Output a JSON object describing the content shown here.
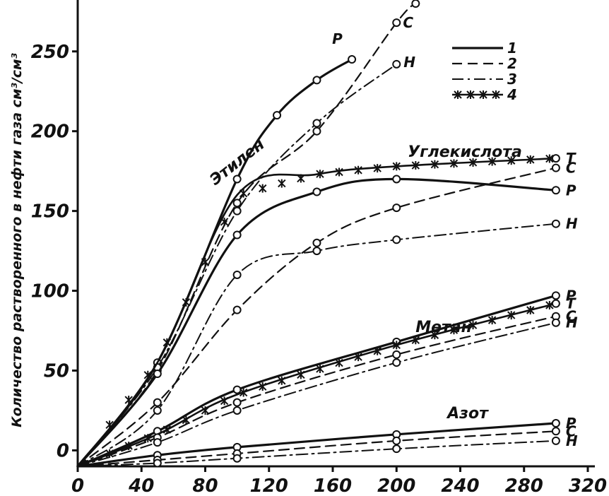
{
  "chart_data": {
    "type": "line",
    "ylabel": "Количество растворенного в нефти газа см³/см³",
    "xlim": [
      0,
      320
    ],
    "ylim": [
      -10,
      280
    ],
    "x_ticks": [
      "0",
      "40",
      "80",
      "120",
      "160",
      "200",
      "240",
      "280",
      "320"
    ],
    "y_ticks": [
      "0",
      "50",
      "100",
      "150",
      "200",
      "250"
    ],
    "legend": [
      {
        "label": "1",
        "style": "solid"
      },
      {
        "label": "2",
        "style": "dashed"
      },
      {
        "label": "3",
        "style": "dashdot"
      },
      {
        "label": "4",
        "style": "solid-star"
      }
    ],
    "groups": [
      {
        "name": "Этилен",
        "series": [
          {
            "end_label": "Р",
            "style": "solid",
            "x": [
              0,
              50,
              100,
              125,
              150,
              172
            ],
            "y": [
              -10,
              55,
              170,
              210,
              232,
              245
            ]
          },
          {
            "end_label": "С",
            "style": "dashed",
            "x": [
              0,
              50,
              100,
              150,
              200,
              212
            ],
            "y": [
              -10,
              50,
              155,
              200,
              268,
              280
            ]
          },
          {
            "end_label": "Н",
            "style": "dashdot",
            "x": [
              0,
              50,
              100,
              150,
              200
            ],
            "y": [
              -10,
              52,
              150,
              205,
              242
            ]
          }
        ]
      },
      {
        "name": "Углекислота",
        "series": [
          {
            "end_label": "Т",
            "style": "solid-star",
            "x": [
              0,
              50,
              100,
              150,
              200,
              300
            ],
            "y": [
              -10,
              55,
              160,
              173,
              178,
              183
            ]
          },
          {
            "end_label": "С",
            "style": "dashed",
            "x": [
              0,
              50,
              100,
              150,
              200,
              300
            ],
            "y": [
              -10,
              30,
              88,
              130,
              152,
              177
            ]
          },
          {
            "end_label": "Р",
            "style": "solid",
            "x": [
              0,
              50,
              100,
              150,
              200,
              300
            ],
            "y": [
              -10,
              48,
              135,
              162,
              170,
              163
            ]
          },
          {
            "end_label": "Н",
            "style": "dashdot",
            "x": [
              0,
              50,
              100,
              150,
              200,
              300
            ],
            "y": [
              -10,
              25,
              110,
              125,
              132,
              142
            ]
          }
        ]
      },
      {
        "name": "Метан",
        "series": [
          {
            "end_label": "Р",
            "style": "solid",
            "x": [
              0,
              50,
              100,
              200,
              300
            ],
            "y": [
              -10,
              12,
              38,
              68,
              97
            ]
          },
          {
            "end_label": "Т",
            "style": "solid-star",
            "x": [
              0,
              50,
              100,
              200,
              300
            ],
            "y": [
              -10,
              10,
              35,
              66,
              92
            ]
          },
          {
            "end_label": "С",
            "style": "dashed",
            "x": [
              0,
              50,
              100,
              200,
              300
            ],
            "y": [
              -10,
              8,
              30,
              60,
              84
            ]
          },
          {
            "end_label": "Н",
            "style": "dashdot",
            "x": [
              0,
              50,
              100,
              200,
              300
            ],
            "y": [
              -10,
              5,
              25,
              55,
              80
            ]
          }
        ]
      },
      {
        "name": "Азот",
        "series": [
          {
            "end_label": "Р",
            "style": "solid",
            "x": [
              0,
              50,
              100,
              200,
              300
            ],
            "y": [
              -10,
              -3,
              2,
              10,
              17
            ]
          },
          {
            "end_label": "С",
            "style": "dashed",
            "x": [
              0,
              50,
              100,
              200,
              300
            ],
            "y": [
              -10,
              -6,
              -2,
              6,
              12
            ]
          },
          {
            "end_label": "Н",
            "style": "dashdot",
            "x": [
              0,
              50,
              100,
              200,
              300
            ],
            "y": [
              -10,
              -8,
              -5,
              1,
              6
            ]
          }
        ]
      }
    ]
  }
}
